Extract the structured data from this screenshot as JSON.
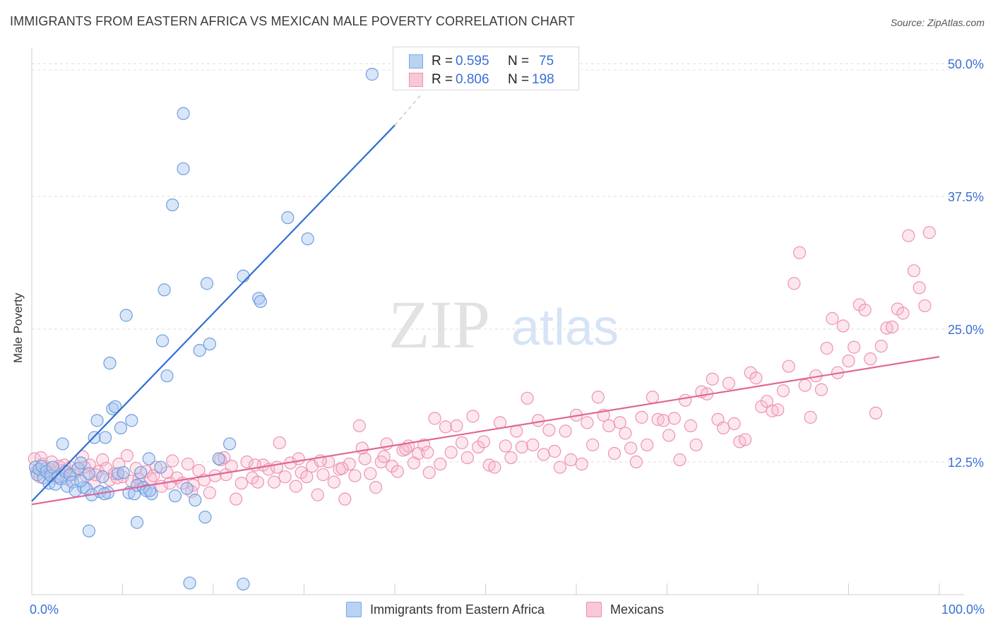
{
  "header": {
    "title": "IMMIGRANTS FROM EASTERN AFRICA VS MEXICAN MALE POVERTY CORRELATION CHART",
    "source": "Source: ZipAtlas.com"
  },
  "watermark": {
    "zip": "ZIP",
    "atlas": "atlas"
  },
  "legend_top": {
    "r_label": "R =",
    "n_label": "N =",
    "rows": [
      {
        "r": "0.595",
        "n": "75",
        "color": "#7aa8e8",
        "fill": "#b9d1f3"
      },
      {
        "r": "0.806",
        "n": "198",
        "color": "#ef8fae",
        "fill": "#f8c8d7"
      }
    ]
  },
  "colors": {
    "blue_stroke": "#6d9ee0",
    "blue_fill": "rgba(170,200,240,0.45)",
    "blue_line": "#2f6fd3",
    "pink_stroke": "#ee93b1",
    "pink_fill": "rgba(245,185,205,0.35)",
    "pink_line": "#e0669a",
    "tick_text": "#3a6fd6"
  },
  "chart_data": {
    "type": "scatter",
    "title": "IMMIGRANTS FROM EASTERN AFRICA VS MEXICAN MALE POVERTY CORRELATION CHART",
    "xlabel": "",
    "ylabel": "Male Poverty",
    "xlim": [
      0,
      100
    ],
    "ylim": [
      0,
      52
    ],
    "x_tick_labels": [
      "0.0%",
      "100.0%"
    ],
    "y_ticks": [
      12.5,
      25.0,
      37.5,
      50.0
    ],
    "y_tick_labels": [
      "12.5%",
      "25.0%",
      "37.5%",
      "50.0%"
    ],
    "grid": true,
    "legend_position": "top-center",
    "series": [
      {
        "name": "Immigrants from Eastern Africa",
        "r": 0.595,
        "n": 75,
        "trend": {
          "x": [
            0,
            40
          ],
          "y": [
            8.8,
            44.2
          ],
          "dashed_to": [
            43,
            47.2
          ]
        },
        "points": [
          [
            0.4,
            12.0
          ],
          [
            0.6,
            11.3
          ],
          [
            0.8,
            11.8
          ],
          [
            1.1,
            12.1
          ],
          [
            1.3,
            11.0
          ],
          [
            1.6,
            11.6
          ],
          [
            1.9,
            10.5
          ],
          [
            2.1,
            11.2
          ],
          [
            2.3,
            12.0
          ],
          [
            2.6,
            10.4
          ],
          [
            2.9,
            11.1
          ],
          [
            3.2,
            10.9
          ],
          [
            3.4,
            14.2
          ],
          [
            3.7,
            11.6
          ],
          [
            3.9,
            10.2
          ],
          [
            4.2,
            11.3
          ],
          [
            4.5,
            10.6
          ],
          [
            4.8,
            9.8
          ],
          [
            5.1,
            11.9
          ],
          [
            5.4,
            12.4
          ],
          [
            5.7,
            10.1
          ],
          [
            6.0,
            10.0
          ],
          [
            6.3,
            11.4
          ],
          [
            6.6,
            9.4
          ],
          [
            6.9,
            14.8
          ],
          [
            7.2,
            16.4
          ],
          [
            7.5,
            9.7
          ],
          [
            7.8,
            11.1
          ],
          [
            8.1,
            14.8
          ],
          [
            8.4,
            9.6
          ],
          [
            8.6,
            21.8
          ],
          [
            8.9,
            17.5
          ],
          [
            9.2,
            17.7
          ],
          [
            9.5,
            11.4
          ],
          [
            9.8,
            15.7
          ],
          [
            10.1,
            11.5
          ],
          [
            10.4,
            26.3
          ],
          [
            10.7,
            9.6
          ],
          [
            11.0,
            16.4
          ],
          [
            11.3,
            9.5
          ],
          [
            11.6,
            10.3
          ],
          [
            12.0,
            11.5
          ],
          [
            12.3,
            10.1
          ],
          [
            12.6,
            9.8
          ],
          [
            12.9,
            12.8
          ],
          [
            13.2,
            9.5
          ],
          [
            14.4,
            23.9
          ],
          [
            14.6,
            28.7
          ],
          [
            14.9,
            20.6
          ],
          [
            15.5,
            36.7
          ],
          [
            15.8,
            9.3
          ],
          [
            17.1,
            10.0
          ],
          [
            18.0,
            8.9
          ],
          [
            16.7,
            40.1
          ],
          [
            16.7,
            45.3
          ],
          [
            18.5,
            23.0
          ],
          [
            19.3,
            29.3
          ],
          [
            19.6,
            23.6
          ],
          [
            20.6,
            12.8
          ],
          [
            21.8,
            14.2
          ],
          [
            23.3,
            30.0
          ],
          [
            25.0,
            27.9
          ],
          [
            25.2,
            27.6
          ],
          [
            28.2,
            35.5
          ],
          [
            30.4,
            33.5
          ],
          [
            37.5,
            49.0
          ],
          [
            5.4,
            10.7
          ],
          [
            6.3,
            6.0
          ],
          [
            8.0,
            9.5
          ],
          [
            11.6,
            6.8
          ],
          [
            13.0,
            9.8
          ],
          [
            14.2,
            12.0
          ],
          [
            19.1,
            7.3
          ],
          [
            17.4,
            1.1
          ],
          [
            23.3,
            1.0
          ]
        ]
      },
      {
        "name": "Mexicans",
        "r": 0.806,
        "n": 198,
        "trend": {
          "x": [
            0,
            100
          ],
          "y": [
            8.5,
            22.4
          ]
        },
        "points": [
          [
            0.3,
            12.8
          ],
          [
            0.5,
            11.6
          ],
          [
            0.9,
            11.1
          ],
          [
            1.2,
            12.3
          ],
          [
            1.5,
            11.9
          ],
          [
            1.8,
            11.4
          ],
          [
            2.2,
            12.5
          ],
          [
            2.6,
            11.0
          ],
          [
            3.0,
            12.1
          ],
          [
            3.4,
            11.7
          ],
          [
            3.8,
            10.9
          ],
          [
            4.2,
            12.0
          ],
          [
            4.6,
            11.3
          ],
          [
            5.0,
            11.8
          ],
          [
            5.6,
            13.0
          ],
          [
            6.0,
            11.2
          ],
          [
            6.4,
            12.2
          ],
          [
            6.9,
            10.6
          ],
          [
            7.3,
            11.6
          ],
          [
            7.8,
            12.7
          ],
          [
            8.2,
            11.9
          ],
          [
            8.6,
            10.8
          ],
          [
            9.1,
            11.4
          ],
          [
            9.6,
            12.3
          ],
          [
            10.0,
            11.1
          ],
          [
            10.5,
            13.1
          ],
          [
            11.0,
            10.7
          ],
          [
            11.5,
            11.9
          ],
          [
            12.0,
            10.4
          ],
          [
            12.6,
            11.6
          ],
          [
            13.1,
            10.9
          ],
          [
            13.7,
            12.0
          ],
          [
            14.3,
            10.2
          ],
          [
            14.9,
            11.5
          ],
          [
            15.5,
            12.6
          ],
          [
            16.0,
            11.0
          ],
          [
            16.6,
            10.5
          ],
          [
            17.2,
            12.3
          ],
          [
            17.8,
            10.3
          ],
          [
            18.4,
            11.7
          ],
          [
            19.0,
            10.8
          ],
          [
            19.6,
            9.6
          ],
          [
            20.2,
            11.2
          ],
          [
            20.8,
            12.7
          ],
          [
            21.4,
            11.3
          ],
          [
            22.0,
            12.1
          ],
          [
            22.5,
            9.0
          ],
          [
            23.1,
            10.5
          ],
          [
            23.7,
            12.5
          ],
          [
            24.3,
            11.0
          ],
          [
            24.9,
            10.6
          ],
          [
            25.5,
            12.2
          ],
          [
            26.1,
            11.8
          ],
          [
            26.7,
            10.6
          ],
          [
            27.3,
            14.3
          ],
          [
            27.9,
            11.1
          ],
          [
            28.5,
            12.4
          ],
          [
            29.1,
            10.2
          ],
          [
            29.7,
            11.5
          ],
          [
            30.3,
            11.1
          ],
          [
            30.9,
            12.1
          ],
          [
            31.5,
            9.4
          ],
          [
            32.1,
            11.3
          ],
          [
            32.7,
            12.5
          ],
          [
            33.3,
            10.6
          ],
          [
            33.9,
            11.8
          ],
          [
            34.5,
            9.0
          ],
          [
            35.0,
            12.3
          ],
          [
            35.6,
            11.2
          ],
          [
            36.1,
            15.9
          ],
          [
            36.7,
            12.8
          ],
          [
            37.3,
            11.4
          ],
          [
            37.9,
            10.1
          ],
          [
            38.5,
            12.5
          ],
          [
            39.1,
            14.2
          ],
          [
            39.7,
            12.1
          ],
          [
            40.3,
            11.6
          ],
          [
            40.9,
            13.6
          ],
          [
            41.5,
            14.0
          ],
          [
            42.1,
            12.4
          ],
          [
            42.6,
            13.3
          ],
          [
            43.2,
            14.1
          ],
          [
            43.8,
            11.5
          ],
          [
            44.4,
            16.6
          ],
          [
            45.0,
            12.3
          ],
          [
            45.6,
            15.8
          ],
          [
            46.2,
            13.4
          ],
          [
            46.8,
            15.9
          ],
          [
            47.4,
            14.3
          ],
          [
            48.0,
            12.9
          ],
          [
            48.6,
            16.8
          ],
          [
            49.2,
            13.9
          ],
          [
            49.8,
            14.4
          ],
          [
            50.4,
            12.2
          ],
          [
            51.0,
            12.0
          ],
          [
            51.6,
            16.2
          ],
          [
            52.2,
            14.0
          ],
          [
            52.8,
            12.9
          ],
          [
            53.4,
            15.4
          ],
          [
            54.0,
            13.9
          ],
          [
            54.6,
            18.5
          ],
          [
            55.2,
            14.1
          ],
          [
            55.8,
            16.4
          ],
          [
            56.4,
            13.2
          ],
          [
            57.0,
            15.5
          ],
          [
            57.6,
            13.5
          ],
          [
            58.2,
            12.0
          ],
          [
            58.8,
            15.4
          ],
          [
            59.4,
            12.7
          ],
          [
            60.0,
            16.9
          ],
          [
            60.6,
            12.3
          ],
          [
            61.2,
            16.2
          ],
          [
            61.8,
            14.1
          ],
          [
            62.4,
            18.6
          ],
          [
            63.0,
            16.9
          ],
          [
            63.6,
            15.9
          ],
          [
            64.2,
            13.3
          ],
          [
            64.8,
            16.2
          ],
          [
            65.4,
            15.2
          ],
          [
            66.0,
            13.8
          ],
          [
            66.6,
            12.5
          ],
          [
            67.2,
            16.7
          ],
          [
            67.8,
            14.1
          ],
          [
            68.4,
            18.6
          ],
          [
            69.0,
            16.5
          ],
          [
            69.6,
            16.4
          ],
          [
            70.2,
            15.0
          ],
          [
            70.8,
            16.6
          ],
          [
            71.4,
            12.7
          ],
          [
            72.0,
            18.3
          ],
          [
            72.6,
            15.9
          ],
          [
            73.2,
            14.1
          ],
          [
            73.8,
            19.1
          ],
          [
            74.4,
            18.9
          ],
          [
            75.0,
            20.3
          ],
          [
            75.6,
            16.5
          ],
          [
            76.2,
            15.7
          ],
          [
            76.8,
            19.9
          ],
          [
            77.4,
            16.1
          ],
          [
            78.0,
            14.4
          ],
          [
            78.6,
            14.6
          ],
          [
            79.2,
            20.9
          ],
          [
            79.8,
            20.4
          ],
          [
            80.4,
            17.7
          ],
          [
            81.0,
            18.2
          ],
          [
            81.6,
            17.3
          ],
          [
            82.2,
            17.4
          ],
          [
            82.8,
            19.2
          ],
          [
            83.4,
            21.5
          ],
          [
            84.0,
            29.3
          ],
          [
            84.6,
            32.2
          ],
          [
            85.2,
            19.7
          ],
          [
            85.8,
            16.7
          ],
          [
            86.4,
            20.6
          ],
          [
            87.0,
            19.3
          ],
          [
            87.6,
            23.2
          ],
          [
            88.2,
            26.0
          ],
          [
            88.8,
            20.9
          ],
          [
            89.4,
            25.3
          ],
          [
            90.0,
            22.0
          ],
          [
            90.6,
            23.3
          ],
          [
            91.2,
            27.3
          ],
          [
            91.8,
            26.8
          ],
          [
            92.4,
            22.2
          ],
          [
            93.0,
            17.1
          ],
          [
            93.6,
            23.4
          ],
          [
            94.2,
            25.1
          ],
          [
            94.8,
            25.2
          ],
          [
            95.4,
            26.9
          ],
          [
            96.0,
            26.5
          ],
          [
            96.6,
            33.8
          ],
          [
            97.2,
            30.5
          ],
          [
            97.8,
            28.9
          ],
          [
            98.4,
            27.2
          ],
          [
            98.9,
            34.1
          ],
          [
            1.0,
            12.9
          ],
          [
            2.0,
            11.8
          ],
          [
            3.6,
            12.2
          ],
          [
            5.8,
            12.0
          ],
          [
            7.0,
            11.3
          ],
          [
            9.4,
            11.0
          ],
          [
            11.8,
            10.9
          ],
          [
            13.4,
            11.2
          ],
          [
            15.2,
            10.5
          ],
          [
            17.6,
            9.7
          ],
          [
            21.2,
            12.9
          ],
          [
            24.6,
            12.2
          ],
          [
            27.0,
            12.0
          ],
          [
            29.4,
            12.8
          ],
          [
            31.8,
            12.6
          ],
          [
            34.2,
            11.9
          ],
          [
            36.4,
            13.8
          ],
          [
            38.8,
            13.0
          ],
          [
            41.2,
            13.7
          ],
          [
            43.6,
            13.4
          ]
        ]
      }
    ]
  },
  "legend_bottom": {
    "items": [
      {
        "label": "Immigrants from Eastern Africa"
      },
      {
        "label": "Mexicans"
      }
    ]
  }
}
